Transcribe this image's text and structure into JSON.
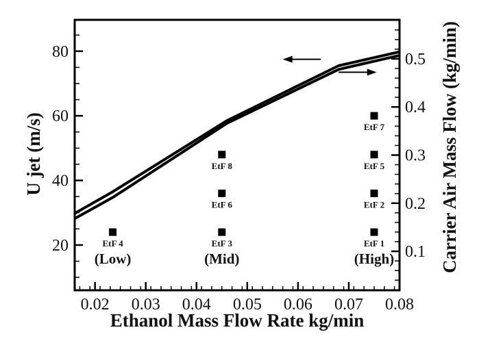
{
  "chart_data": {
    "type": "line",
    "title": "",
    "xlabel": "Ethanol Mass Flow Rate kg/min",
    "ylabel": "U jet (m/s)",
    "y2label": "Carrier Air Mass Flow (kg/min)",
    "xlim": [
      0.016,
      0.08
    ],
    "ylim": [
      6,
      89.7
    ],
    "y2lim": [
      0.019,
      0.581
    ],
    "xticks": [
      0.02,
      0.03,
      0.04,
      0.05,
      0.06,
      0.07,
      0.08
    ],
    "xtick_labels": [
      "0.02",
      "0.03",
      "0.04",
      "0.05",
      "0.06",
      "0.07",
      "0.08"
    ],
    "yticks": [
      20,
      40,
      60,
      80
    ],
    "ytick_labels": [
      "20",
      "40",
      "60",
      "80"
    ],
    "y2ticks": [
      0.1,
      0.2,
      0.3,
      0.4,
      0.5
    ],
    "y2tick_labels": [
      "0.1",
      "0.2",
      "0.3",
      "0.4",
      "0.5"
    ],
    "grid": false,
    "series": [
      {
        "name": "U jet",
        "axis": "left",
        "x": [
          0.016,
          0.0235,
          0.046,
          0.068,
          0.08
        ],
        "y": [
          29.8,
          36.5,
          58.5,
          75.5,
          79.8
        ]
      },
      {
        "name": "Carrier Air Mass Flow",
        "axis": "right",
        "x": [
          0.016,
          0.0235,
          0.046,
          0.068,
          0.08
        ],
        "y": [
          0.168,
          0.212,
          0.366,
          0.478,
          0.507
        ]
      }
    ],
    "annotations": {
      "arrows": [
        {
          "name": "arrow-left-axis",
          "direction": "left",
          "x_from": 0.0645,
          "x_to": 0.057,
          "y": 77.5
        },
        {
          "name": "arrow-right-axis",
          "direction": "right",
          "x_from": 0.068,
          "x_to": 0.0755,
          "y": 73.5
        }
      ],
      "points": [
        {
          "label": "EtF 4",
          "x": 0.0235,
          "y": 24
        },
        {
          "label": "EtF 3",
          "x": 0.045,
          "y": 24
        },
        {
          "label": "EtF 6",
          "x": 0.045,
          "y": 36
        },
        {
          "label": "EtF 8",
          "x": 0.045,
          "y": 48
        },
        {
          "label": "EtF 1",
          "x": 0.075,
          "y": 24
        },
        {
          "label": "EtF 2",
          "x": 0.075,
          "y": 36
        },
        {
          "label": "EtF 5",
          "x": 0.075,
          "y": 48
        },
        {
          "label": "EtF 7",
          "x": 0.075,
          "y": 60
        }
      ],
      "groups": [
        {
          "label": "(Low)",
          "x": 0.0235
        },
        {
          "label": "(Mid)",
          "x": 0.045
        },
        {
          "label": "(High)",
          "x": 0.075
        }
      ]
    }
  }
}
